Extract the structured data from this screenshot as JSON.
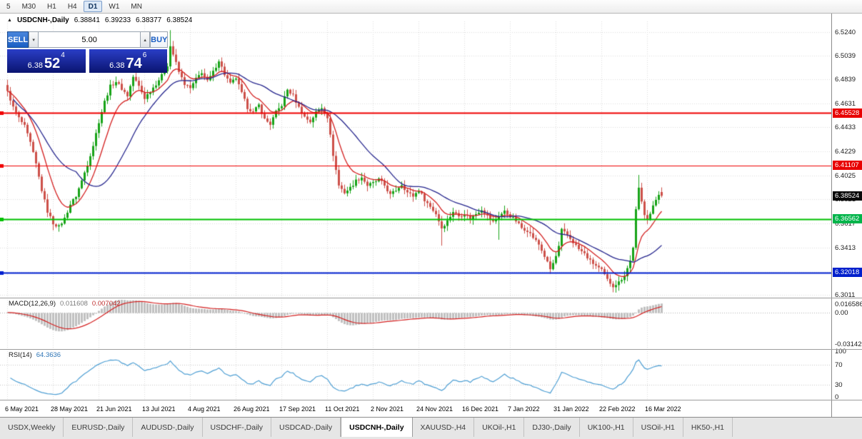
{
  "toolbar": {
    "timeframes": [
      "5",
      "M30",
      "H1",
      "H4",
      "D1",
      "W1",
      "MN"
    ],
    "active": "D1"
  },
  "chart": {
    "title": "USDCNH-,Daily",
    "ohlc": {
      "open": "6.38841",
      "high": "6.39233",
      "low": "6.38377",
      "close": "6.38524"
    },
    "trade_panel": {
      "sell_label": "SELL",
      "buy_label": "BUY",
      "volume": "5.00",
      "sell_price": {
        "big": "6.38",
        "pips": "52",
        "pt": "4"
      },
      "buy_price": {
        "big": "6.38",
        "pips": "74",
        "pt": "6"
      }
    },
    "price_axis": {
      "labels": [
        "6.5240",
        "6.5039",
        "6.4839",
        "6.4631",
        "6.4433",
        "6.4229",
        "6.4025",
        "6.3821",
        "6.3617",
        "6.3413",
        "6.3209",
        "6.3011"
      ]
    },
    "price_tags": [
      {
        "name": "resistance-upper",
        "label": "6.45528",
        "price": 6.45528,
        "bg": "#e80000"
      },
      {
        "name": "resistance-lower",
        "label": "6.41107",
        "price": 6.41107,
        "bg": "#e80000"
      },
      {
        "name": "current-price",
        "label": "6.38524",
        "price": 6.38524,
        "bg": "#0a0a0a"
      },
      {
        "name": "support-green",
        "label": "6.36562",
        "price": 6.36562,
        "bg": "#00b44a"
      },
      {
        "name": "support-blue",
        "label": "6.32018",
        "price": 6.32018,
        "bg": "#0020cc"
      }
    ],
    "hlines": [
      {
        "price": 6.45528,
        "color": "#f00000",
        "width": 2
      },
      {
        "price": 6.41107,
        "color": "#f00000",
        "width": 1.2
      },
      {
        "price": 6.36562,
        "color": "#00c000",
        "width": 2
      },
      {
        "price": 6.32018,
        "color": "#0020d0",
        "width": 2
      }
    ]
  },
  "chart_data": {
    "type": "candlestick",
    "symbol": "USDCNH-",
    "timeframe": "Daily",
    "bars": 230,
    "y_range": [
      6.29956,
      6.5329
    ],
    "noise": {
      "body": 0.0028,
      "wick": 0.0042
    },
    "close_anchors": [
      [
        0,
        6.474
      ],
      [
        2,
        6.46
      ],
      [
        4,
        6.451
      ],
      [
        6,
        6.444
      ],
      [
        8,
        6.43
      ],
      [
        10,
        6.412
      ],
      [
        12,
        6.39
      ],
      [
        14,
        6.372
      ],
      [
        16,
        6.362
      ],
      [
        18,
        6.359
      ],
      [
        20,
        6.366
      ],
      [
        22,
        6.378
      ],
      [
        24,
        6.385
      ],
      [
        26,
        6.398
      ],
      [
        28,
        6.412
      ],
      [
        30,
        6.428
      ],
      [
        32,
        6.448
      ],
      [
        34,
        6.465
      ],
      [
        36,
        6.478
      ],
      [
        38,
        6.482
      ],
      [
        40,
        6.476
      ],
      [
        42,
        6.47
      ],
      [
        44,
        6.486
      ],
      [
        46,
        6.478
      ],
      [
        48,
        6.468
      ],
      [
        50,
        6.474
      ],
      [
        52,
        6.48
      ],
      [
        54,
        6.487
      ],
      [
        56,
        6.496
      ],
      [
        57,
        6.512
      ],
      [
        58,
        6.505
      ],
      [
        60,
        6.49
      ],
      [
        62,
        6.48
      ],
      [
        64,
        6.476
      ],
      [
        66,
        6.484
      ],
      [
        68,
        6.49
      ],
      [
        70,
        6.482
      ],
      [
        72,
        6.49
      ],
      [
        74,
        6.5
      ],
      [
        76,
        6.488
      ],
      [
        78,
        6.48
      ],
      [
        80,
        6.485
      ],
      [
        82,
        6.472
      ],
      [
        84,
        6.46
      ],
      [
        86,
        6.456
      ],
      [
        88,
        6.462
      ],
      [
        90,
        6.45
      ],
      [
        92,
        6.446
      ],
      [
        94,
        6.456
      ],
      [
        96,
        6.462
      ],
      [
        98,
        6.475
      ],
      [
        100,
        6.47
      ],
      [
        102,
        6.46
      ],
      [
        104,
        6.452
      ],
      [
        106,
        6.448
      ],
      [
        108,
        6.456
      ],
      [
        110,
        6.46
      ],
      [
        112,
        6.452
      ],
      [
        114,
        6.42
      ],
      [
        116,
        6.394
      ],
      [
        118,
        6.388
      ],
      [
        120,
        6.392
      ],
      [
        122,
        6.398
      ],
      [
        124,
        6.401
      ],
      [
        126,
        6.394
      ],
      [
        128,
        6.396
      ],
      [
        130,
        6.399
      ],
      [
        132,
        6.394
      ],
      [
        134,
        6.386
      ],
      [
        136,
        6.39
      ],
      [
        138,
        6.395
      ],
      [
        140,
        6.388
      ],
      [
        142,
        6.385
      ],
      [
        144,
        6.39
      ],
      [
        146,
        6.382
      ],
      [
        148,
        6.376
      ],
      [
        150,
        6.37
      ],
      [
        152,
        6.358
      ],
      [
        154,
        6.364
      ],
      [
        156,
        6.372
      ],
      [
        158,
        6.368
      ],
      [
        160,
        6.37
      ],
      [
        162,
        6.366
      ],
      [
        164,
        6.37
      ],
      [
        166,
        6.374
      ],
      [
        168,
        6.368
      ],
      [
        170,
        6.363
      ],
      [
        172,
        6.368
      ],
      [
        174,
        6.372
      ],
      [
        176,
        6.368
      ],
      [
        178,
        6.364
      ],
      [
        180,
        6.358
      ],
      [
        182,
        6.356
      ],
      [
        184,
        6.35
      ],
      [
        186,
        6.344
      ],
      [
        188,
        6.334
      ],
      [
        190,
        6.323
      ],
      [
        191,
        6.328
      ],
      [
        192,
        6.334
      ],
      [
        193,
        6.342
      ],
      [
        194,
        6.356
      ],
      [
        196,
        6.352
      ],
      [
        198,
        6.346
      ],
      [
        200,
        6.34
      ],
      [
        202,
        6.336
      ],
      [
        204,
        6.33
      ],
      [
        206,
        6.326
      ],
      [
        208,
        6.322
      ],
      [
        210,
        6.314
      ],
      [
        212,
        6.309
      ],
      [
        214,
        6.312
      ],
      [
        216,
        6.318
      ],
      [
        218,
        6.33
      ],
      [
        219,
        6.342
      ],
      [
        220,
        6.373
      ],
      [
        221,
        6.391
      ],
      [
        222,
        6.38
      ],
      [
        223,
        6.37
      ],
      [
        224,
        6.366
      ],
      [
        225,
        6.37
      ],
      [
        226,
        6.376
      ],
      [
        227,
        6.382
      ],
      [
        228,
        6.387
      ],
      [
        229,
        6.38524
      ]
    ],
    "overrides": [
      {
        "i": 16,
        "l": 6.356
      },
      {
        "i": 57,
        "h": 6.5255
      },
      {
        "i": 152,
        "l": 6.343
      },
      {
        "i": 172,
        "l": 6.348
      },
      {
        "i": 212,
        "l": 6.3035
      },
      {
        "i": 221,
        "h": 6.4029
      },
      {
        "i": 229,
        "o": 6.38841,
        "h": 6.39233,
        "l": 6.38377,
        "c": 6.38524
      }
    ],
    "date_labels": [
      "6 May 2021",
      "28 May 2021",
      "21 Jun 2021",
      "13 Jul 2021",
      "4 Aug 2021",
      "26 Aug 2021",
      "17 Sep 2021",
      "11 Oct 2021",
      "2 Nov 2021",
      "24 Nov 2021",
      "16 Dec 2021",
      "7 Jan 2022",
      "31 Jan 2022",
      "22 Feb 2022",
      "16 Mar 2022"
    ],
    "bars_per_label": 16,
    "candle_colors": {
      "up": "#17a317",
      "down": "#cd5049"
    },
    "indicators": {
      "ma_fast": {
        "type": "EMA",
        "period": 10,
        "color": "#d42020"
      },
      "ma_slow": {
        "type": "SMA",
        "period": 25,
        "color": "#26268e"
      },
      "macd": {
        "label": "MACD(12,26,9)",
        "value_main": "0.011608",
        "value_signal": "0.007042",
        "fast": 12,
        "slow": 26,
        "signal": 9,
        "axis_labels": [
          "0.016586",
          "0.00",
          "-0.031420"
        ],
        "hist_color": "#c0c0c0",
        "signal_color": "#d42020"
      },
      "rsi": {
        "label": "RSI(14)",
        "value": "64.3636",
        "period": 14,
        "axis_labels": [
          "100",
          "70",
          "30",
          "0"
        ],
        "levels": [
          70,
          30
        ],
        "color": "#4e9fd4"
      }
    }
  },
  "tabs": {
    "items": [
      "USDX,Weekly",
      "EURUSD-,Daily",
      "AUDUSD-,Daily",
      "USDCHF-,Daily",
      "USDCAD-,Daily",
      "USDCNH-,Daily",
      "XAUUSD-,H4",
      "UKOil-,H1",
      "DJ30-,Daily",
      "UK100-,H1",
      "USOil-,H1",
      "HK50-,H1"
    ],
    "active_index": 5
  }
}
